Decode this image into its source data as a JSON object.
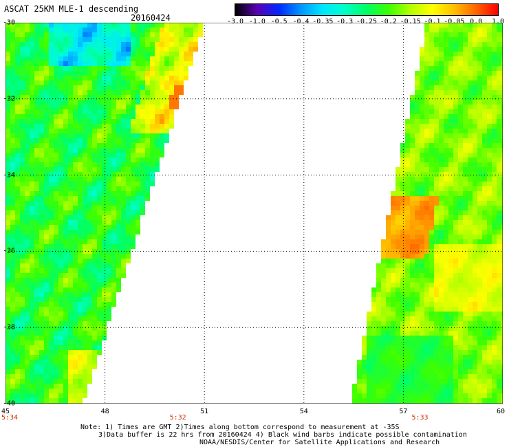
{
  "header": {
    "title": "ASCAT 25KM MLE-1 descending",
    "date": "20160424"
  },
  "colorbar": {
    "labels": [
      "-3.0",
      "-1.0",
      "-0.5",
      "-0.4",
      "-0.35",
      "-0.3",
      "-0.25",
      "-0.2",
      "-0.15",
      "-0.1",
      "-0.05",
      "0.0",
      "1.0"
    ],
    "colors": [
      "#000000",
      "#5a00b4",
      "#0028ff",
      "#0096ff",
      "#00e6ff",
      "#00ffc8",
      "#00ff64",
      "#3cff00",
      "#b4ff00",
      "#ffff00",
      "#ffbe00",
      "#ff6400",
      "#ff0000"
    ]
  },
  "map": {
    "lon_range": [
      45,
      60
    ],
    "lat_range": [
      -40,
      -30
    ],
    "lat_labels": [
      "-30",
      "-32",
      "-34",
      "-36",
      "-38",
      "-40"
    ],
    "lat_values": [
      -30,
      -32,
      -34,
      -36,
      -38,
      -40
    ],
    "lon_labels": [
      "45",
      "48",
      "51",
      "54",
      "57",
      "60"
    ],
    "lon_values": [
      45,
      48,
      51,
      54,
      57,
      60
    ],
    "times": [
      {
        "text": "5:34",
        "lon": 45
      },
      {
        "text": "5:32",
        "lon": 50.2
      },
      {
        "text": "5:33",
        "lon": 57.5
      }
    ]
  },
  "notes": [
    "Note: 1) Times are GMT 2)Times along bottom correspond to measurement at -35S",
    "3)Data buffer is 22 hrs from 20160424 4) Black wind barbs indicate possible contamination",
    "NOAA/NESDIS/Center for Satellite Applications and Research"
  ]
}
